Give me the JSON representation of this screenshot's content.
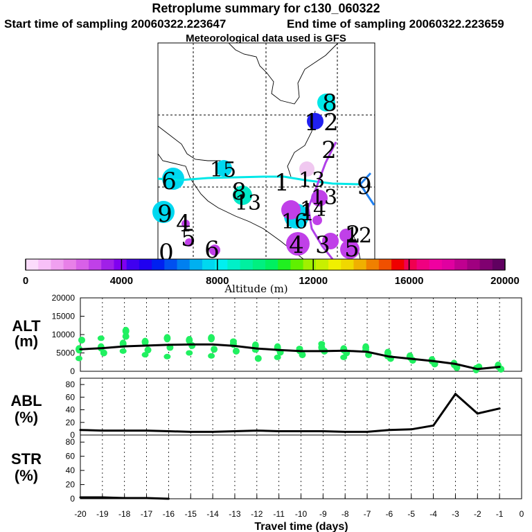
{
  "header": {
    "title": "Retroplume summary for c130_060322",
    "start": "Start time of sampling 20060322.223647",
    "end": "End time of sampling 20060322.223659",
    "met": "Meteorological data used is GFS"
  },
  "colorbar": {
    "label": "Altitude (m)",
    "ticks": [
      "0",
      "4000",
      "8000",
      "12000",
      "16000",
      "20000"
    ],
    "colors": [
      "#fcdcfc",
      "#f8c0f8",
      "#f0a0f0",
      "#e880e8",
      "#d860e8",
      "#c040e8",
      "#a020e8",
      "#8000f0",
      "#4000f0",
      "#2000f0",
      "#0020f0",
      "#0050f0",
      "#0080f0",
      "#00b0f0",
      "#00d8f0",
      "#00f0f0",
      "#00f0c8",
      "#00f0a0",
      "#00f080",
      "#00f060",
      "#20f020",
      "#60f000",
      "#a0f000",
      "#c8f000",
      "#f0f000",
      "#f0d800",
      "#f0b000",
      "#f08000",
      "#f05000",
      "#f00000",
      "#f00050",
      "#f00080",
      "#f000a0",
      "#e000a0",
      "#c00090",
      "#a00080",
      "#800070",
      "#600060"
    ]
  },
  "map": {
    "labels": [
      {
        "n": "8",
        "c": "#00e8e8"
      },
      {
        "n": "1",
        "c": "#2020f0"
      },
      {
        "n": "2",
        "c": "#ffffff"
      },
      {
        "n": "2",
        "c": "#ffffff"
      },
      {
        "n": "15",
        "c": "#00d8f0"
      },
      {
        "n": "1",
        "c": "#ffffff"
      },
      {
        "n": "6",
        "c": "#00d8f0"
      },
      {
        "n": "13",
        "c": "#f0c8f0"
      },
      {
        "n": "9",
        "c": "#ffffff"
      },
      {
        "n": "8",
        "c": "#00e8c8"
      },
      {
        "n": "13",
        "c": "#00e8c8"
      },
      {
        "n": "13",
        "c": "#ffffff"
      },
      {
        "n": "9",
        "c": "#00d8f0"
      },
      {
        "n": "4",
        "c": "#c040e8"
      },
      {
        "n": "1",
        "c": "#ffffff"
      },
      {
        "n": "16",
        "c": "#00d8f0"
      },
      {
        "n": "14",
        "c": "#c040e8"
      },
      {
        "n": "5",
        "c": "#ffffff"
      },
      {
        "n": "2",
        "c": "#ffffff"
      },
      {
        "n": "4",
        "c": "#c040e8"
      },
      {
        "n": "3",
        "c": "#c040e8"
      },
      {
        "n": "5",
        "c": "#c040e8"
      },
      {
        "n": "12",
        "c": "#00c8f0"
      },
      {
        "n": "6",
        "c": "#ffffff"
      },
      {
        "n": "0",
        "c": "#ffffff"
      }
    ]
  },
  "panels": {
    "alt": {
      "label1": "ALT",
      "label2": "(m)",
      "yticks": [
        "20000",
        "15000",
        "10000",
        "5000",
        "0"
      ]
    },
    "abl": {
      "label1": "ABL",
      "label2": "(%)",
      "yticks": [
        "80",
        "60",
        "40",
        "20",
        "0"
      ]
    },
    "str": {
      "label1": "STR",
      "label2": "(%)",
      "yticks": [
        "80",
        "60",
        "40",
        "20",
        "0"
      ]
    }
  },
  "xaxis": {
    "title": "Travel time (days)",
    "ticks": [
      "-20",
      "-19",
      "-18",
      "-17",
      "-16",
      "-15",
      "-14",
      "-13",
      "-12",
      "-11",
      "-10",
      "-9",
      "-8",
      "-7",
      "-6",
      "-5",
      "-4",
      "-3",
      "-2",
      "-1",
      "0"
    ]
  },
  "chart_data": {
    "type": "line",
    "x_label": "Travel time (days)",
    "x_range": [
      -20,
      0
    ],
    "series": [
      {
        "name": "ALT (m)",
        "ylim": [
          0,
          20000
        ],
        "x": [
          -20,
          -19,
          -18,
          -17,
          -16,
          -15,
          -14,
          -13,
          -12,
          -11,
          -10,
          -9,
          -8,
          -7,
          -6,
          -5,
          -4,
          -3,
          -2,
          -1
        ],
        "values": [
          6000,
          6300,
          6800,
          7000,
          7200,
          7300,
          7300,
          6900,
          6200,
          5800,
          5500,
          5500,
          5600,
          5300,
          4000,
          3400,
          2800,
          2000,
          600,
          1200
        ]
      },
      {
        "name": "ABL (%)",
        "ylim": [
          0,
          90
        ],
        "x": [
          -20,
          -19,
          -18,
          -17,
          -16,
          -15,
          -14,
          -13,
          -12,
          -11,
          -10,
          -9,
          -8,
          -7,
          -6,
          -5,
          -4,
          -3,
          -2,
          -1
        ],
        "values": [
          8,
          7,
          7,
          7,
          6,
          5,
          5,
          6,
          7,
          6,
          6,
          6,
          5,
          5,
          8,
          9,
          15,
          65,
          34,
          42
        ]
      },
      {
        "name": "STR (%)",
        "ylim": [
          0,
          90
        ],
        "x": [
          -20,
          -19,
          -18,
          -17,
          -16
        ],
        "values": [
          2,
          2,
          1,
          1,
          0
        ]
      }
    ],
    "alt_scatter_x": [
      -20,
      -19,
      -18,
      -17,
      -16,
      -15,
      -14,
      -13,
      -12,
      -11,
      -10,
      -9,
      -8,
      -7,
      -6,
      -5,
      -4,
      -3,
      -2,
      -1
    ],
    "alt_scatter_y": [
      [
        6000,
        8500,
        3500
      ],
      [
        6500,
        5000,
        9000
      ],
      [
        7500,
        9500,
        5500,
        11000
      ],
      [
        8000,
        5800,
        4500
      ],
      [
        9000,
        6500,
        4000
      ],
      [
        8500,
        7000,
        5000
      ],
      [
        9000,
        6000,
        4200
      ],
      [
        7500,
        5500,
        8200
      ],
      [
        7000,
        3500,
        5800
      ],
      [
        6500,
        5200,
        3800
      ],
      [
        5800,
        4500,
        6200
      ],
      [
        6500,
        5500,
        7500
      ],
      [
        6000,
        5000,
        3800
      ],
      [
        6500,
        4500,
        5800
      ],
      [
        5000,
        3500,
        4000
      ],
      [
        4000,
        3000
      ],
      [
        3000,
        2000
      ],
      [
        2000,
        1000
      ],
      [
        600,
        1200
      ],
      [
        1500,
        600
      ]
    ]
  }
}
